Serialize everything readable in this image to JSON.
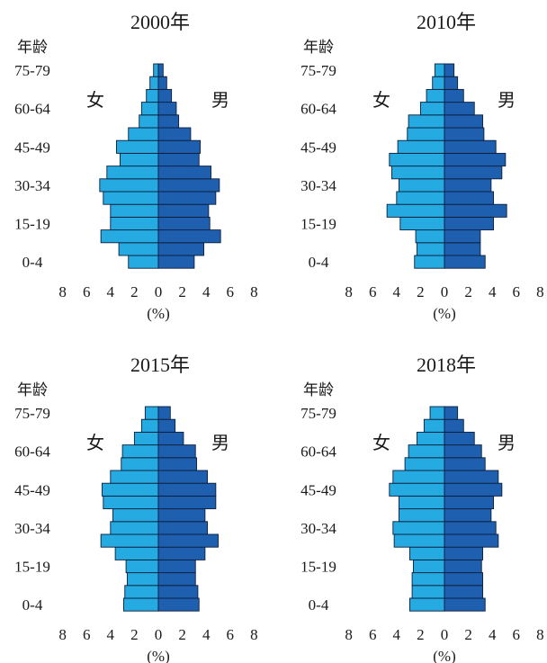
{
  "chart_data": [
    {
      "type": "bar",
      "title": "2000年",
      "ylabel": "年龄",
      "xlabel": "(%)",
      "left_label": "女",
      "right_label": "男",
      "xlim": [
        -8,
        8
      ],
      "xticks": [
        "8",
        "6",
        "4",
        "2",
        "0",
        "2",
        "4",
        "6",
        "8"
      ],
      "ytick_labels": [
        "75-79",
        "60-64",
        "45-49",
        "30-34",
        "15-19",
        "0-4"
      ],
      "categories": [
        "0-4",
        "5-9",
        "10-14",
        "15-19",
        "20-24",
        "25-29",
        "30-34",
        "35-39",
        "40-44",
        "45-49",
        "50-54",
        "55-59",
        "60-64",
        "65-69",
        "70-74",
        "75-79"
      ],
      "series": [
        {
          "name": "女",
          "values": [
            2.5,
            3.3,
            4.8,
            4.0,
            4.0,
            4.6,
            4.9,
            4.3,
            3.2,
            3.5,
            2.5,
            1.6,
            1.4,
            1.0,
            0.7,
            0.4
          ]
        },
        {
          "name": "男",
          "values": [
            3.0,
            3.8,
            5.2,
            4.3,
            4.2,
            4.8,
            5.1,
            4.4,
            3.4,
            3.5,
            2.7,
            1.7,
            1.5,
            1.1,
            0.7,
            0.4
          ]
        }
      ]
    },
    {
      "type": "bar",
      "title": "2010年",
      "ylabel": "年龄",
      "xlabel": "(%)",
      "left_label": "女",
      "right_label": "男",
      "xlim": [
        -8,
        8
      ],
      "xticks": [
        "8",
        "6",
        "4",
        "2",
        "0",
        "2",
        "4",
        "6",
        "8"
      ],
      "ytick_labels": [
        "75-79",
        "60-64",
        "45-49",
        "30-34",
        "15-19",
        "0-4"
      ],
      "categories": [
        "0-4",
        "5-9",
        "10-14",
        "15-19",
        "20-24",
        "25-29",
        "30-34",
        "35-39",
        "40-44",
        "45-49",
        "50-54",
        "55-59",
        "60-64",
        "65-69",
        "70-74",
        "75-79"
      ],
      "series": [
        {
          "name": "女",
          "values": [
            2.5,
            2.3,
            2.4,
            3.7,
            4.8,
            4.0,
            3.8,
            4.4,
            4.6,
            3.9,
            3.1,
            3.0,
            2.0,
            1.5,
            1.0,
            0.8
          ]
        },
        {
          "name": "男",
          "values": [
            3.4,
            3.0,
            3.0,
            4.1,
            5.2,
            4.1,
            3.9,
            4.8,
            5.1,
            4.3,
            3.3,
            3.2,
            2.5,
            1.6,
            1.1,
            0.8
          ]
        }
      ]
    },
    {
      "type": "bar",
      "title": "2015年",
      "ylabel": "年龄",
      "xlabel": "(%)",
      "left_label": "女",
      "right_label": "男",
      "xlim": [
        -8,
        8
      ],
      "xticks": [
        "8",
        "6",
        "4",
        "2",
        "0",
        "2",
        "4",
        "6",
        "8"
      ],
      "ytick_labels": [
        "75-79",
        "60-64",
        "45-49",
        "30-34",
        "15-19",
        "0-4"
      ],
      "categories": [
        "0-4",
        "5-9",
        "10-14",
        "15-19",
        "20-24",
        "25-29",
        "30-34",
        "35-39",
        "40-44",
        "45-49",
        "50-54",
        "55-59",
        "60-64",
        "65-69",
        "70-74",
        "75-79"
      ],
      "series": [
        {
          "name": "女",
          "values": [
            2.9,
            2.8,
            2.6,
            2.7,
            3.6,
            4.8,
            4.0,
            3.8,
            4.6,
            4.7,
            4.0,
            3.1,
            3.0,
            2.0,
            1.4,
            1.1
          ]
        },
        {
          "name": "男",
          "values": [
            3.4,
            3.3,
            3.1,
            3.1,
            3.9,
            5.0,
            4.1,
            3.9,
            4.8,
            4.8,
            4.1,
            3.2,
            3.1,
            2.1,
            1.4,
            1.0
          ]
        }
      ]
    },
    {
      "type": "bar",
      "title": "2018年",
      "ylabel": "年龄",
      "xlabel": "(%)",
      "left_label": "女",
      "right_label": "男",
      "xlim": [
        -8,
        8
      ],
      "xticks": [
        "8",
        "6",
        "4",
        "2",
        "0",
        "2",
        "4",
        "6",
        "8"
      ],
      "ytick_labels": [
        "75-79",
        "60-64",
        "45-49",
        "30-34",
        "15-19",
        "0-4"
      ],
      "categories": [
        "0-4",
        "5-9",
        "10-14",
        "15-19",
        "20-24",
        "25-29",
        "30-34",
        "35-39",
        "40-44",
        "45-49",
        "50-54",
        "55-59",
        "60-64",
        "65-69",
        "70-74",
        "75-79"
      ],
      "series": [
        {
          "name": "女",
          "values": [
            2.9,
            2.7,
            2.7,
            2.6,
            2.9,
            4.2,
            4.3,
            3.8,
            3.8,
            4.6,
            4.3,
            3.3,
            3.0,
            2.3,
            1.7,
            1.2
          ]
        },
        {
          "name": "男",
          "values": [
            3.4,
            3.2,
            3.2,
            3.1,
            3.2,
            4.5,
            4.3,
            3.9,
            4.1,
            4.8,
            4.5,
            3.4,
            3.1,
            2.5,
            1.6,
            1.1
          ]
        }
      ]
    }
  ],
  "colors": {
    "female": "#25aae1",
    "male": "#1f5fb0",
    "outline": "#0d1e3a",
    "text": "#1a1a1a"
  }
}
